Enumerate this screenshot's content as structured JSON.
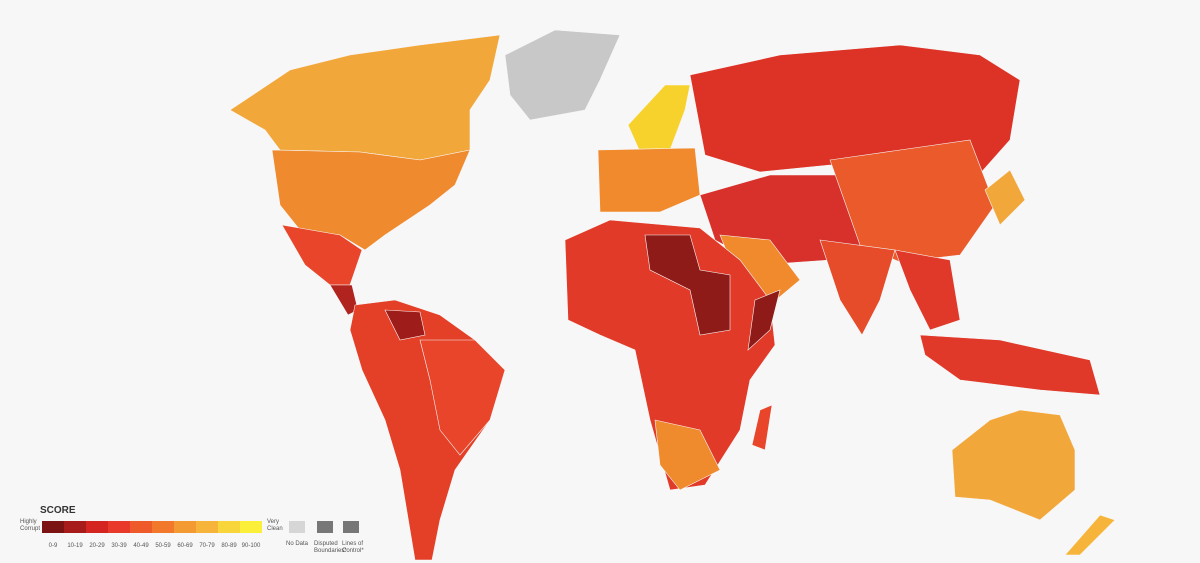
{
  "legend": {
    "title": "SCORE",
    "low_label": "Highly Corrupt",
    "high_label": "Very Clean",
    "bins": [
      {
        "label": "0-9",
        "color": "#7b1313"
      },
      {
        "label": "10-19",
        "color": "#a81b1b"
      },
      {
        "label": "20-29",
        "color": "#d42520"
      },
      {
        "label": "30-39",
        "color": "#e8392a"
      },
      {
        "label": "40-49",
        "color": "#ef5a2a"
      },
      {
        "label": "50-59",
        "color": "#f2782c"
      },
      {
        "label": "60-69",
        "color": "#f49a33"
      },
      {
        "label": "70-79",
        "color": "#f6b53a"
      },
      {
        "label": "80-89",
        "color": "#f8d53a"
      },
      {
        "label": "90-100",
        "color": "#fbef3a"
      }
    ],
    "no_data": {
      "label": "No Data",
      "color": "#d6d6d6"
    },
    "disputed": {
      "label": "Disputed Boundaries*",
      "color": "#777777"
    },
    "lines_of_control": {
      "label": "Lines of Control*",
      "color": "#777777"
    }
  }
}
